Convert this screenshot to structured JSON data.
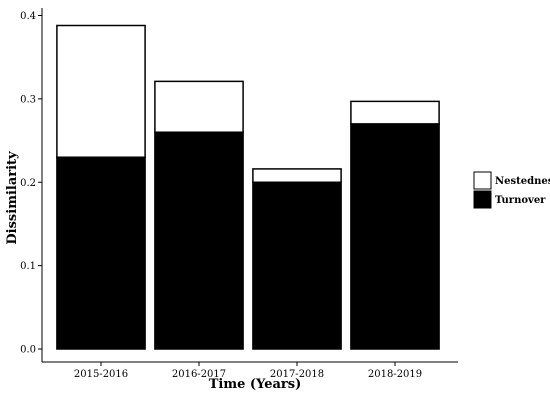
{
  "chart_data": {
    "type": "bar",
    "stacked": true,
    "xlabel": "Time (Years)",
    "ylabel": "Dissimilarity",
    "categories": [
      "2015-2016",
      "2016-2017",
      "2017-2018",
      "2018-2019"
    ],
    "series": [
      {
        "name": "Turnover",
        "values": [
          0.23,
          0.26,
          0.2,
          0.27
        ],
        "color": "#000000"
      },
      {
        "name": "Nestedness",
        "values": [
          0.158,
          0.061,
          0.016,
          0.027
        ],
        "color": "#ffffff"
      }
    ],
    "ylim": [
      0,
      0.42
    ],
    "yticks": [
      "0.0",
      "0.1",
      "0.2",
      "0.3",
      "0.4"
    ],
    "grid": false,
    "legend_position": "right",
    "legend": [
      {
        "label": "Nestedness",
        "color": "#ffffff"
      },
      {
        "label": "Turnover",
        "color": "#000000"
      }
    ]
  }
}
